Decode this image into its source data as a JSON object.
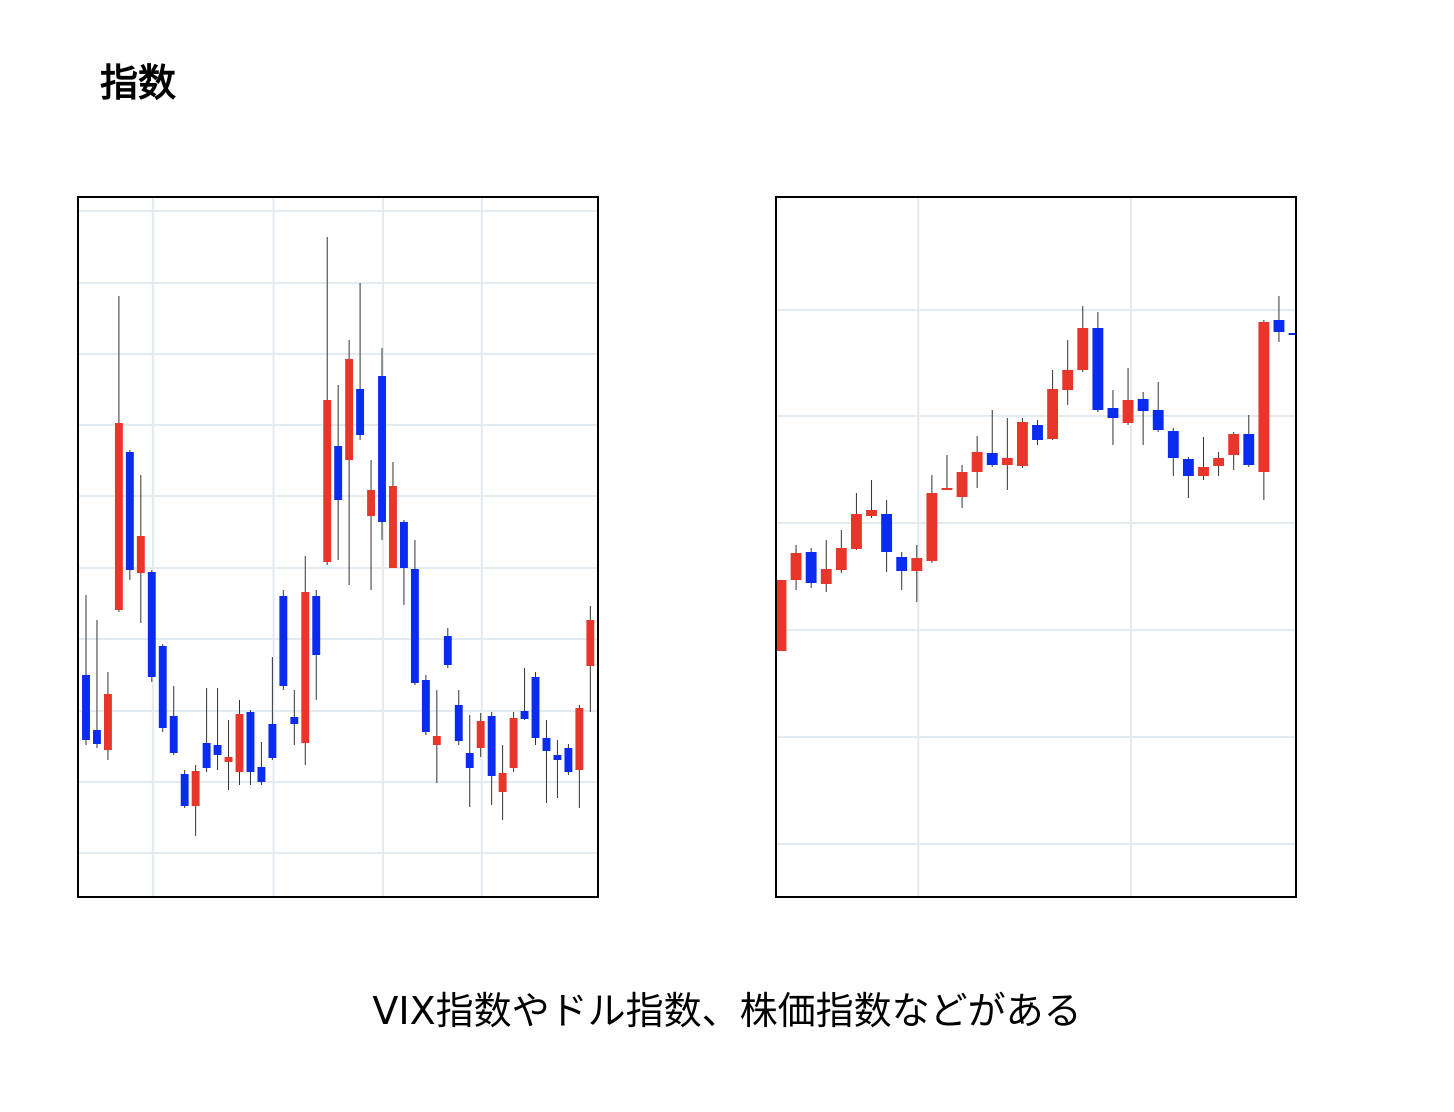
{
  "slide": {
    "title": "指数",
    "caption": "VIX指数やドル指数、株価指数などがある"
  },
  "chart_data": [
    {
      "type": "candlestick",
      "up_color": "#e8362a",
      "down_color": "#0a2cf0",
      "grid": true,
      "xlim": [
        -0.73,
        46.7
      ],
      "ylim": [
        0,
        700
      ],
      "xticks": [
        6.1,
        17.1,
        27.1,
        36.1
      ],
      "yticks": [
        44,
        115,
        186,
        258,
        329,
        401,
        472,
        543,
        614,
        686
      ],
      "x": [
        0,
        1,
        2,
        3,
        4,
        5,
        6,
        7,
        8,
        9,
        10,
        11,
        12,
        13,
        14,
        15,
        16,
        17,
        18,
        19,
        20,
        21,
        22,
        23,
        24,
        25,
        26,
        27,
        28,
        29,
        30,
        31,
        32,
        33,
        34,
        35,
        36,
        37,
        38,
        39,
        40,
        41,
        42,
        43,
        44,
        45,
        46
      ],
      "open": [
        222,
        167,
        147,
        287,
        445,
        324,
        325,
        251,
        181,
        123,
        91,
        154,
        152,
        135,
        125,
        185,
        130,
        173,
        301,
        180,
        154,
        301,
        335,
        451,
        437,
        508,
        381,
        521,
        329,
        375,
        328,
        217,
        152,
        261,
        192,
        144,
        149,
        181,
        105,
        129,
        186,
        220,
        159,
        142,
        149,
        127,
        231
      ],
      "high": [
        302,
        277,
        225,
        601,
        447,
        422,
        327,
        253,
        211,
        127,
        132,
        209,
        209,
        177,
        197,
        187,
        155,
        240,
        307,
        207,
        341,
        307,
        660,
        512,
        557,
        614,
        437,
        549,
        435,
        377,
        357,
        222,
        207,
        269,
        207,
        182,
        184,
        185,
        152,
        185,
        229,
        225,
        177,
        157,
        153,
        192,
        291
      ],
      "low": [
        152,
        149,
        137,
        285,
        317,
        274,
        215,
        165,
        142,
        89,
        61,
        125,
        127,
        107,
        112,
        112,
        112,
        137,
        207,
        152,
        132,
        197,
        332,
        337,
        312,
        457,
        307,
        357,
        329,
        292,
        212,
        162,
        114,
        229,
        152,
        90,
        140,
        92,
        77,
        125,
        177,
        152,
        94,
        99,
        122,
        89,
        185
      ],
      "close": [
        157,
        153,
        203,
        474,
        327,
        361,
        220,
        169,
        144,
        91,
        126,
        129,
        142,
        140,
        183,
        125,
        115,
        139,
        211,
        173,
        305,
        242,
        497,
        397,
        538,
        462,
        407,
        375,
        411,
        329,
        214,
        165,
        161,
        232,
        156,
        129,
        176,
        121,
        124,
        179,
        178,
        159,
        146,
        137,
        125,
        189,
        277
      ]
    },
    {
      "type": "candlestick",
      "up_color": "#e8362a",
      "down_color": "#0a2cf0",
      "grid": true,
      "xlim": [
        -0.33,
        34.13
      ],
      "ylim": [
        0,
        700
      ],
      "xticks": [
        9.1,
        23.2
      ],
      "yticks": [
        53,
        160,
        267,
        374,
        481,
        587
      ],
      "x": [
        0,
        1,
        2,
        3,
        4,
        5,
        6,
        7,
        8,
        9,
        10,
        11,
        12,
        13,
        14,
        15,
        16,
        17,
        18,
        19,
        20,
        21,
        22,
        23,
        24,
        25,
        26,
        27,
        28,
        29,
        30,
        31,
        32,
        33,
        34
      ],
      "open": [
        246,
        317,
        345,
        313,
        327,
        348,
        381,
        383,
        340,
        326,
        336,
        407,
        400,
        425,
        444,
        432,
        431,
        472,
        458,
        507,
        527,
        569,
        489,
        474,
        498,
        487,
        466,
        438,
        421,
        431,
        442,
        463,
        425,
        577,
        564
      ],
      "high": [
        317,
        352,
        349,
        357,
        367,
        404,
        417,
        397,
        345,
        352,
        422,
        442,
        432,
        461,
        487,
        479,
        479,
        477,
        527,
        557,
        591,
        585,
        507,
        529,
        505,
        515,
        469,
        440,
        460,
        445,
        465,
        482,
        577,
        601,
        564
      ],
      "low": [
        246,
        307,
        309,
        305,
        324,
        347,
        379,
        325,
        307,
        295,
        334,
        407,
        389,
        409,
        430,
        407,
        429,
        452,
        457,
        492,
        525,
        485,
        452,
        472,
        452,
        465,
        421,
        399,
        417,
        421,
        427,
        430,
        397,
        555,
        562
      ],
      "close": [
        317,
        344,
        314,
        328,
        349,
        383,
        387,
        345,
        326,
        339,
        404,
        409,
        425,
        445,
        432,
        439,
        475,
        457,
        508,
        527,
        569,
        487,
        479,
        497,
        486,
        467,
        439,
        421,
        430,
        439,
        463,
        432,
        575,
        565,
        562
      ]
    }
  ]
}
